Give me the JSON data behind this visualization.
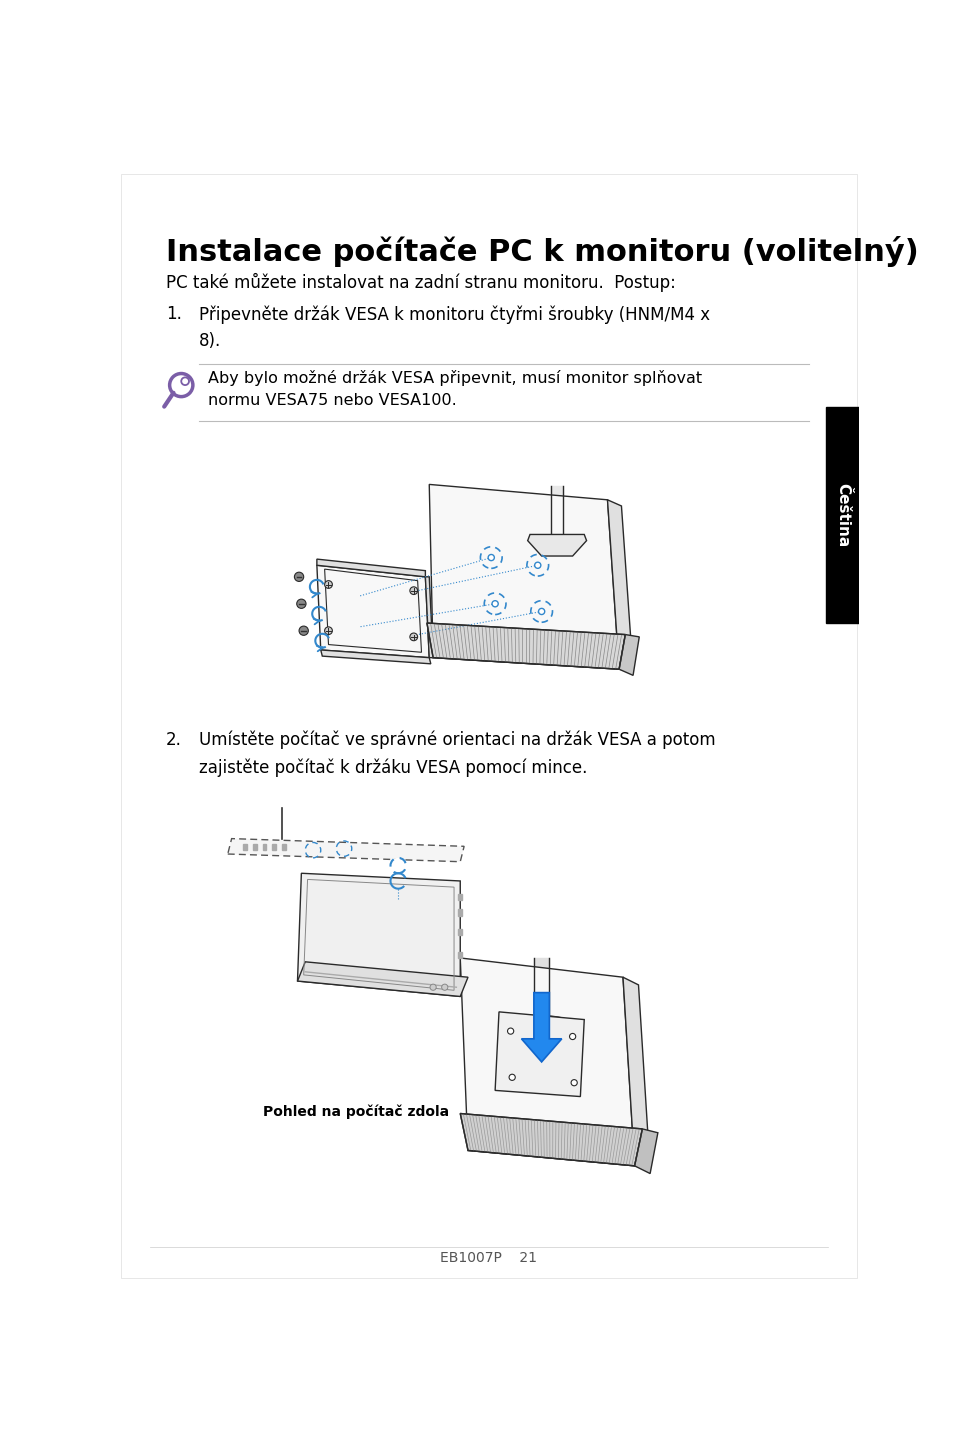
{
  "title": "Instalace počítače PC k monitoru (volitelný)",
  "subtitle": "PC také můžete instalovat na zadní stranu monitoru.  Postup:",
  "step1_number": "1.",
  "step1_text": "Připevněte držák VESA k monitoru čtyřmi šroubky (HNM/M4 x\n8).",
  "note_text": "Aby bylo možné držák VESA připevnit, musí monitor splňovat\nnormu VESA75 nebo VESA100.",
  "step2_number": "2.",
  "step2_text": "Umístěte počítač ve správné orientaci na držák VESA a potom\nzajistěte počítač k držáku VESA pomocí mince.",
  "caption": "Pohled na počítač zdola",
  "footer": "EB1007P    21",
  "tab_text": "Čeština",
  "bg_color": "#ffffff",
  "text_color": "#000000",
  "tab_color": "#000000",
  "tab_text_color": "#ffffff",
  "note_icon_color": "#7B5EA7",
  "line_color": "#bbbbbb",
  "title_fontsize": 22,
  "body_fontsize": 12,
  "note_fontsize": 11.5,
  "caption_fontsize": 10,
  "footer_fontsize": 10
}
